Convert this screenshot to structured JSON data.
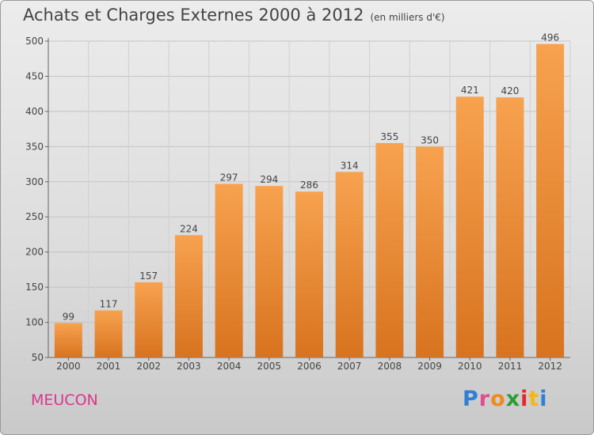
{
  "chart_data": {
    "type": "bar",
    "title": "Achats et Charges Externes 2000 à 2012",
    "subtitle": "(en milliers d'€)",
    "categories": [
      "2000",
      "2001",
      "2002",
      "2003",
      "2004",
      "2005",
      "2006",
      "2007",
      "2008",
      "2009",
      "2010",
      "2011",
      "2012"
    ],
    "values": [
      99,
      117,
      157,
      224,
      297,
      294,
      286,
      314,
      355,
      350,
      421,
      420,
      496
    ],
    "ylim": [
      50,
      500
    ],
    "yticks": [
      50,
      100,
      150,
      200,
      250,
      300,
      350,
      400,
      450,
      500
    ],
    "grid": true,
    "bar_color": "#f2923a"
  },
  "commune": "MEUCON",
  "logo": {
    "text": "Proxiti"
  }
}
